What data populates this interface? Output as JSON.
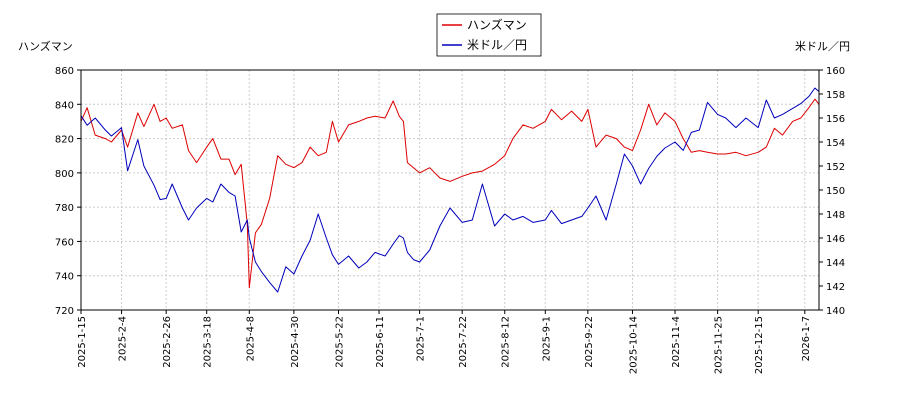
{
  "chart_data": {
    "type": "line",
    "left_axis_label": "ハンズマン",
    "right_axis_label": "米ドル／円",
    "y_left": {
      "ylim": [
        720,
        860
      ],
      "ticks": [
        720,
        740,
        760,
        780,
        800,
        820,
        840,
        860
      ]
    },
    "y_right": {
      "ylim": [
        140,
        160
      ],
      "ticks": [
        140,
        142,
        144,
        146,
        148,
        150,
        152,
        154,
        156,
        158,
        160
      ]
    },
    "x_range": [
      "2025-01-15",
      "2026-01-14"
    ],
    "x_ticks": [
      "2025-1-15",
      "2025-2-4",
      "2025-2-26",
      "2025-3-18",
      "2025-4-8",
      "2025-4-30",
      "2025-5-22",
      "2025-6-11",
      "2025-7-1",
      "2025-7-22",
      "2025-8-12",
      "2025-9-1",
      "2025-9-22",
      "2025-10-14",
      "2025-11-4",
      "2025-11-25",
      "2025-12-15",
      "2026-1-7"
    ],
    "grid": true,
    "legend_position": "top-center",
    "series": [
      {
        "name": "ハンズマン",
        "axis": "left",
        "color": "#dd0000",
        "points": [
          [
            "2025-01-15",
            830
          ],
          [
            "2025-01-18",
            838
          ],
          [
            "2025-01-22",
            822
          ],
          [
            "2025-01-27",
            820
          ],
          [
            "2025-01-30",
            818
          ],
          [
            "2025-02-04",
            825
          ],
          [
            "2025-02-07",
            815
          ],
          [
            "2025-02-12",
            835
          ],
          [
            "2025-02-15",
            827
          ],
          [
            "2025-02-20",
            840
          ],
          [
            "2025-02-23",
            830
          ],
          [
            "2025-02-26",
            832
          ],
          [
            "2025-03-01",
            826
          ],
          [
            "2025-03-06",
            828
          ],
          [
            "2025-03-09",
            813
          ],
          [
            "2025-03-13",
            806
          ],
          [
            "2025-03-18",
            815
          ],
          [
            "2025-03-21",
            820
          ],
          [
            "2025-03-25",
            808
          ],
          [
            "2025-03-29",
            808
          ],
          [
            "2025-04-01",
            799
          ],
          [
            "2025-04-04",
            805
          ],
          [
            "2025-04-07",
            770
          ],
          [
            "2025-04-08",
            733
          ],
          [
            "2025-04-11",
            765
          ],
          [
            "2025-04-14",
            770
          ],
          [
            "2025-04-18",
            785
          ],
          [
            "2025-04-22",
            810
          ],
          [
            "2025-04-26",
            805
          ],
          [
            "2025-04-30",
            803
          ],
          [
            "2025-05-04",
            806
          ],
          [
            "2025-05-08",
            815
          ],
          [
            "2025-05-12",
            810
          ],
          [
            "2025-05-16",
            812
          ],
          [
            "2025-05-19",
            830
          ],
          [
            "2025-05-22",
            818
          ],
          [
            "2025-05-27",
            828
          ],
          [
            "2025-06-01",
            830
          ],
          [
            "2025-06-05",
            832
          ],
          [
            "2025-06-09",
            833
          ],
          [
            "2025-06-14",
            832
          ],
          [
            "2025-06-18",
            842
          ],
          [
            "2025-06-21",
            833
          ],
          [
            "2025-06-23",
            830
          ],
          [
            "2025-06-25",
            806
          ],
          [
            "2025-06-28",
            803
          ],
          [
            "2025-07-01",
            800
          ],
          [
            "2025-07-06",
            803
          ],
          [
            "2025-07-11",
            797
          ],
          [
            "2025-07-16",
            795
          ],
          [
            "2025-07-22",
            798
          ],
          [
            "2025-07-27",
            800
          ],
          [
            "2025-08-01",
            801
          ],
          [
            "2025-08-07",
            805
          ],
          [
            "2025-08-12",
            810
          ],
          [
            "2025-08-16",
            820
          ],
          [
            "2025-08-21",
            828
          ],
          [
            "2025-08-26",
            826
          ],
          [
            "2025-09-01",
            830
          ],
          [
            "2025-09-04",
            837
          ],
          [
            "2025-09-09",
            831
          ],
          [
            "2025-09-14",
            836
          ],
          [
            "2025-09-19",
            830
          ],
          [
            "2025-09-22",
            837
          ],
          [
            "2025-09-26",
            815
          ],
          [
            "2025-10-01",
            822
          ],
          [
            "2025-10-06",
            820
          ],
          [
            "2025-10-10",
            815
          ],
          [
            "2025-10-14",
            813
          ],
          [
            "2025-10-18",
            825
          ],
          [
            "2025-10-22",
            840
          ],
          [
            "2025-10-26",
            828
          ],
          [
            "2025-10-30",
            835
          ],
          [
            "2025-11-04",
            830
          ],
          [
            "2025-11-08",
            820
          ],
          [
            "2025-11-12",
            812
          ],
          [
            "2025-11-16",
            813
          ],
          [
            "2025-11-20",
            812
          ],
          [
            "2025-11-25",
            811
          ],
          [
            "2025-11-29",
            811
          ],
          [
            "2025-12-04",
            812
          ],
          [
            "2025-12-09",
            810
          ],
          [
            "2025-12-15",
            812
          ],
          [
            "2025-12-19",
            815
          ],
          [
            "2025-12-23",
            826
          ],
          [
            "2025-12-27",
            822
          ],
          [
            "2026-01-01",
            830
          ],
          [
            "2026-01-05",
            832
          ],
          [
            "2026-01-09",
            838
          ],
          [
            "2026-01-12",
            843
          ],
          [
            "2026-01-14",
            840
          ]
        ]
      },
      {
        "name": "米ドル／円",
        "axis": "right",
        "color": "#0000bb",
        "points": [
          [
            "2025-01-15",
            156.2
          ],
          [
            "2025-01-18",
            155.4
          ],
          [
            "2025-01-22",
            156.0
          ],
          [
            "2025-01-27",
            155.0
          ],
          [
            "2025-01-30",
            154.5
          ],
          [
            "2025-02-04",
            155.2
          ],
          [
            "2025-02-07",
            151.6
          ],
          [
            "2025-02-12",
            154.2
          ],
          [
            "2025-02-15",
            152.0
          ],
          [
            "2025-02-20",
            150.4
          ],
          [
            "2025-02-23",
            149.2
          ],
          [
            "2025-02-26",
            149.3
          ],
          [
            "2025-03-01",
            150.5
          ],
          [
            "2025-03-06",
            148.5
          ],
          [
            "2025-03-09",
            147.5
          ],
          [
            "2025-03-13",
            148.5
          ],
          [
            "2025-03-18",
            149.3
          ],
          [
            "2025-03-21",
            149.0
          ],
          [
            "2025-03-25",
            150.5
          ],
          [
            "2025-03-29",
            149.8
          ],
          [
            "2025-04-01",
            149.5
          ],
          [
            "2025-04-04",
            146.5
          ],
          [
            "2025-04-07",
            147.5
          ],
          [
            "2025-04-08",
            146.0
          ],
          [
            "2025-04-11",
            144.0
          ],
          [
            "2025-04-14",
            143.2
          ],
          [
            "2025-04-18",
            142.3
          ],
          [
            "2025-04-22",
            141.5
          ],
          [
            "2025-04-26",
            143.6
          ],
          [
            "2025-04-30",
            143.0
          ],
          [
            "2025-05-04",
            144.5
          ],
          [
            "2025-05-08",
            145.8
          ],
          [
            "2025-05-12",
            148.0
          ],
          [
            "2025-05-16",
            146.0
          ],
          [
            "2025-05-19",
            144.6
          ],
          [
            "2025-05-22",
            143.8
          ],
          [
            "2025-05-27",
            144.5
          ],
          [
            "2025-06-01",
            143.5
          ],
          [
            "2025-06-05",
            144.0
          ],
          [
            "2025-06-09",
            144.8
          ],
          [
            "2025-06-14",
            144.5
          ],
          [
            "2025-06-18",
            145.5
          ],
          [
            "2025-06-21",
            146.2
          ],
          [
            "2025-06-23",
            146.0
          ],
          [
            "2025-06-25",
            144.8
          ],
          [
            "2025-06-28",
            144.2
          ],
          [
            "2025-07-01",
            144.0
          ],
          [
            "2025-07-06",
            145.0
          ],
          [
            "2025-07-11",
            147.0
          ],
          [
            "2025-07-16",
            148.5
          ],
          [
            "2025-07-22",
            147.3
          ],
          [
            "2025-07-27",
            147.5
          ],
          [
            "2025-08-01",
            150.5
          ],
          [
            "2025-08-07",
            147.0
          ],
          [
            "2025-08-12",
            148.0
          ],
          [
            "2025-08-16",
            147.5
          ],
          [
            "2025-08-21",
            147.8
          ],
          [
            "2025-08-26",
            147.3
          ],
          [
            "2025-09-01",
            147.5
          ],
          [
            "2025-09-04",
            148.3
          ],
          [
            "2025-09-09",
            147.2
          ],
          [
            "2025-09-14",
            147.5
          ],
          [
            "2025-09-19",
            147.8
          ],
          [
            "2025-09-22",
            148.5
          ],
          [
            "2025-09-26",
            149.5
          ],
          [
            "2025-10-01",
            147.5
          ],
          [
            "2025-10-06",
            150.5
          ],
          [
            "2025-10-10",
            153.0
          ],
          [
            "2025-10-14",
            152.0
          ],
          [
            "2025-10-18",
            150.5
          ],
          [
            "2025-10-22",
            151.8
          ],
          [
            "2025-10-26",
            152.8
          ],
          [
            "2025-10-30",
            153.5
          ],
          [
            "2025-11-04",
            154.0
          ],
          [
            "2025-11-08",
            153.3
          ],
          [
            "2025-11-12",
            154.8
          ],
          [
            "2025-11-16",
            155.0
          ],
          [
            "2025-11-20",
            157.3
          ],
          [
            "2025-11-25",
            156.3
          ],
          [
            "2025-11-29",
            156.0
          ],
          [
            "2025-12-04",
            155.2
          ],
          [
            "2025-12-09",
            156.0
          ],
          [
            "2025-12-15",
            155.2
          ],
          [
            "2025-12-19",
            157.5
          ],
          [
            "2025-12-23",
            156.0
          ],
          [
            "2025-12-27",
            156.3
          ],
          [
            "2026-01-01",
            156.8
          ],
          [
            "2026-01-05",
            157.2
          ],
          [
            "2026-01-09",
            157.8
          ],
          [
            "2026-01-12",
            158.5
          ],
          [
            "2026-01-14",
            158.2
          ]
        ]
      }
    ]
  }
}
